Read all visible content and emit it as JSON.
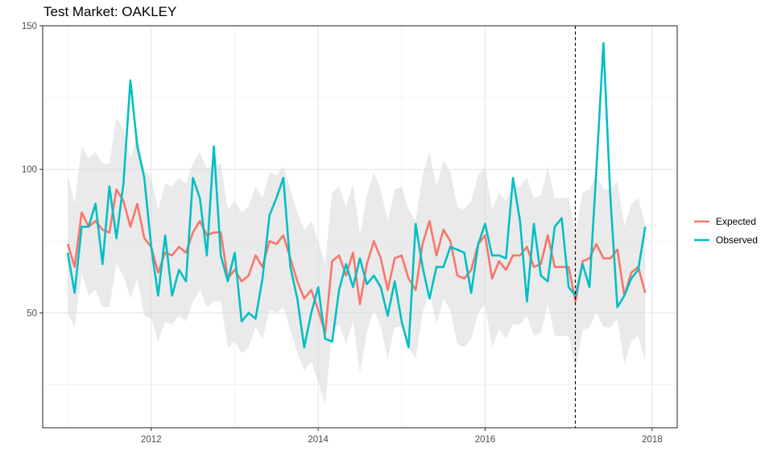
{
  "chart_data": {
    "type": "line",
    "title": "Test Market: OAKLEY",
    "xlabel": "",
    "ylabel": "",
    "xlim": [
      2010.7,
      2018.3
    ],
    "ylim": [
      10,
      150
    ],
    "x_ticks": [
      2012,
      2014,
      2016,
      2018
    ],
    "x_tick_labels": [
      "2012",
      "2014",
      "2016",
      "2018"
    ],
    "y_ticks": [
      50,
      100,
      150
    ],
    "y_tick_labels": [
      "50",
      "100",
      "150"
    ],
    "grid": true,
    "legend_position": "right",
    "intervention_x": 2017.08,
    "x": [
      2011.0,
      2011.083,
      2011.167,
      2011.25,
      2011.333,
      2011.417,
      2011.5,
      2011.583,
      2011.667,
      2011.75,
      2011.833,
      2011.917,
      2012.0,
      2012.083,
      2012.167,
      2012.25,
      2012.333,
      2012.417,
      2012.5,
      2012.583,
      2012.667,
      2012.75,
      2012.833,
      2012.917,
      2013.0,
      2013.083,
      2013.167,
      2013.25,
      2013.333,
      2013.417,
      2013.5,
      2013.583,
      2013.667,
      2013.75,
      2013.833,
      2013.917,
      2014.0,
      2014.083,
      2014.167,
      2014.25,
      2014.333,
      2014.417,
      2014.5,
      2014.583,
      2014.667,
      2014.75,
      2014.833,
      2014.917,
      2015.0,
      2015.083,
      2015.167,
      2015.25,
      2015.333,
      2015.417,
      2015.5,
      2015.583,
      2015.667,
      2015.75,
      2015.833,
      2015.917,
      2016.0,
      2016.083,
      2016.167,
      2016.25,
      2016.333,
      2016.417,
      2016.5,
      2016.583,
      2016.667,
      2016.75,
      2016.833,
      2016.917,
      2017.0,
      2017.083,
      2017.167,
      2017.25,
      2017.333,
      2017.417,
      2017.5,
      2017.583,
      2017.667,
      2017.75,
      2017.833,
      2017.917
    ],
    "series": [
      {
        "name": "Expected",
        "color": "#F8766D",
        "values": [
          74,
          66,
          85,
          80,
          82,
          79,
          78,
          93,
          89,
          80,
          88,
          76,
          73,
          64,
          71,
          70,
          73,
          71,
          78,
          82,
          77,
          78,
          78,
          62,
          65,
          61,
          63,
          70,
          66,
          75,
          74,
          77,
          69,
          61,
          55,
          58,
          51,
          43,
          68,
          70,
          63,
          71,
          53,
          67,
          75,
          69,
          58,
          69,
          70,
          62,
          58,
          74,
          82,
          70,
          79,
          75,
          63,
          62,
          65,
          74,
          77,
          62,
          68,
          65,
          70,
          70,
          73,
          66,
          67,
          77,
          66,
          66,
          66,
          54,
          68,
          69,
          74,
          69,
          69,
          72,
          56,
          64,
          66,
          57
        ],
        "lower": [
          50,
          45,
          64,
          56,
          58,
          52,
          52,
          67,
          63,
          55,
          62,
          49,
          48,
          40,
          47,
          46,
          49,
          47,
          54,
          58,
          52,
          54,
          54,
          38,
          40,
          36,
          38,
          45,
          41,
          51,
          50,
          52,
          44,
          36,
          30,
          33,
          26,
          18,
          44,
          46,
          39,
          47,
          29,
          43,
          51,
          45,
          34,
          45,
          45,
          38,
          34,
          50,
          58,
          46,
          55,
          51,
          39,
          38,
          41,
          50,
          53,
          38,
          44,
          41,
          46,
          46,
          49,
          42,
          43,
          53,
          42,
          42,
          42,
          30,
          44,
          45,
          50,
          45,
          45,
          48,
          32,
          40,
          42,
          33
        ],
        "upper": [
          98,
          88,
          108,
          104,
          106,
          102,
          102,
          118,
          114,
          104,
          112,
          100,
          97,
          86,
          95,
          94,
          97,
          95,
          102,
          106,
          100,
          102,
          102,
          86,
          89,
          85,
          87,
          94,
          90,
          99,
          98,
          101,
          93,
          85,
          79,
          82,
          75,
          67,
          92,
          94,
          87,
          95,
          77,
          91,
          99,
          93,
          82,
          93,
          94,
          86,
          82,
          98,
          106,
          94,
          103,
          99,
          87,
          86,
          89,
          98,
          101,
          86,
          92,
          89,
          94,
          94,
          97,
          90,
          91,
          101,
          90,
          90,
          90,
          78,
          92,
          93,
          98,
          93,
          93,
          96,
          80,
          88,
          90,
          81
        ]
      },
      {
        "name": "Observed",
        "color": "#00BFC4",
        "values": [
          71,
          57,
          80,
          80,
          88,
          67,
          94,
          76,
          95,
          131,
          108,
          97,
          73,
          56,
          77,
          56,
          65,
          61,
          97,
          90,
          70,
          108,
          70,
          61,
          71,
          47,
          50,
          48,
          62,
          84,
          90,
          97,
          66,
          55,
          38,
          50,
          59,
          41,
          40,
          58,
          67,
          59,
          69,
          60,
          63,
          59,
          49,
          61,
          47,
          38,
          81,
          66,
          55,
          66,
          66,
          73,
          72,
          71,
          57,
          74,
          81,
          70,
          70,
          69,
          97,
          82,
          54,
          81,
          63,
          61,
          80,
          83,
          59,
          56,
          67,
          59,
          100,
          144,
          90,
          52,
          56,
          62,
          65,
          80
        ]
      }
    ]
  }
}
